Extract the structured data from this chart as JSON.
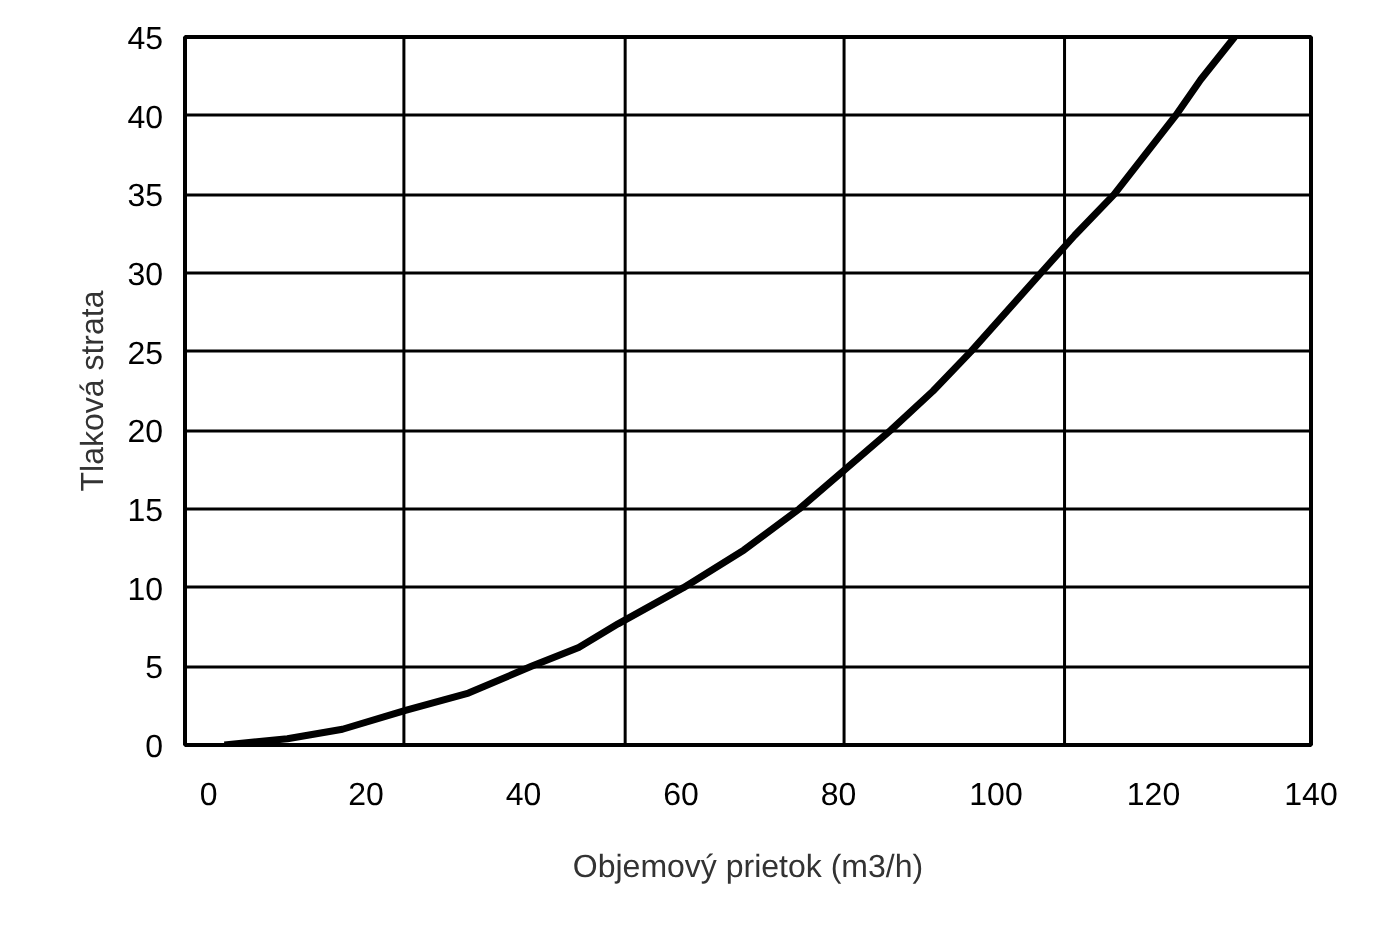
{
  "chart_data": {
    "type": "line",
    "xlabel": "Objemový prietok (m3/h)",
    "ylabel": "Tlaková strata",
    "x": [
      2,
      10,
      17,
      25,
      33,
      41,
      47,
      52,
      60.3,
      68,
      75,
      86.6,
      92,
      96.8,
      105.7,
      110,
      115,
      122.8,
      126,
      130.3
    ],
    "series": [
      {
        "color": "#000000",
        "values": [
          0,
          0.4,
          1,
          2.2,
          3.3,
          5,
          6.2,
          7.7,
          10,
          12.4,
          15,
          20,
          22.5,
          25,
          30,
          32.4,
          35,
          40,
          42.3,
          45
        ]
      }
    ],
    "xlim": [
      -3,
      140
    ],
    "ylim": [
      0,
      45
    ],
    "xticks": [
      0,
      20,
      40,
      60,
      80,
      100,
      120,
      140
    ],
    "yticks": [
      0,
      5,
      10,
      15,
      20,
      25,
      30,
      35,
      40,
      45
    ],
    "grid": "y",
    "marker": "none",
    "line_style": "solid",
    "ref_lines": [
      {
        "axis": "x",
        "value": 24.8,
        "color": "#000000"
      },
      {
        "axis": "x",
        "value": 52.9,
        "color": "#000000"
      },
      {
        "axis": "x",
        "value": 80.7,
        "color": "#000000"
      },
      {
        "axis": "x",
        "value": 108.7,
        "color": "#000000"
      }
    ]
  }
}
